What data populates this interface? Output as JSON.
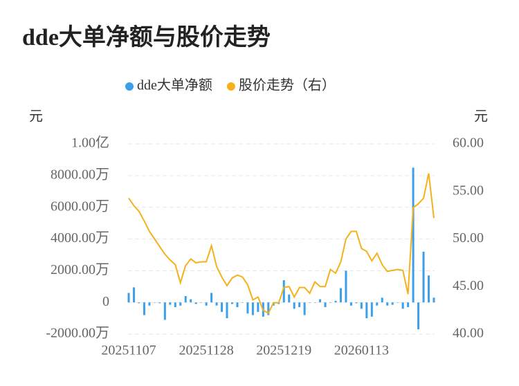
{
  "chart_data": {
    "type": "bar-line",
    "title": "dde大单净额与股价走势",
    "y_label": "元",
    "y2_label": "元",
    "categories": [
      "20251107",
      null,
      null,
      null,
      null,
      null,
      null,
      null,
      null,
      null,
      null,
      null,
      null,
      null,
      null,
      "20251128",
      null,
      null,
      null,
      null,
      null,
      null,
      null,
      null,
      null,
      null,
      null,
      null,
      null,
      null,
      "20251219",
      null,
      null,
      null,
      null,
      null,
      null,
      null,
      null,
      null,
      null,
      null,
      null,
      null,
      null,
      "20260113",
      null,
      null,
      null,
      null,
      null,
      null,
      null,
      null,
      null,
      null,
      null,
      null,
      null,
      null
    ],
    "series": [
      {
        "name": "dde大单净额",
        "color": "#3ba0e9",
        "kind": "bar",
        "axis": "y",
        "values": [
          600,
          950,
          -50,
          -800,
          -200,
          0,
          -50,
          -1100,
          -150,
          -300,
          -200,
          400,
          200,
          -100,
          0,
          -200,
          600,
          -200,
          -600,
          -1000,
          -100,
          -300,
          0,
          -700,
          -800,
          -600,
          -900,
          -800,
          -200,
          -100,
          1400,
          500,
          -400,
          -300,
          -800,
          0,
          0,
          200,
          -300,
          0,
          100,
          900,
          2000,
          -200,
          -50,
          -400,
          -1000,
          -900,
          -200,
          300,
          -200,
          -150,
          0,
          -400,
          -300,
          8500,
          -1700,
          3200,
          1700,
          300
        ]
      },
      {
        "name": "股价走势（右）",
        "color": "#f4b11a",
        "kind": "line",
        "axis": "y2",
        "values": [
          54.3,
          53.5,
          52.9,
          51.9,
          50.8,
          50.0,
          49.2,
          48.4,
          47.8,
          47.3,
          45.4,
          47.2,
          47.9,
          47.5,
          47.6,
          47.6,
          49.3,
          47.1,
          46.0,
          45.1,
          45.9,
          46.2,
          46.0,
          45.2,
          43.6,
          43.9,
          42.5,
          42.2,
          43.3,
          43.3,
          44.9,
          45.0,
          43.9,
          44.9,
          44.9,
          44.3,
          45.5,
          45.0,
          45.0,
          46.8,
          46.4,
          47.6,
          50.0,
          50.8,
          50.8,
          49.0,
          48.7,
          47.7,
          48.5,
          47.3,
          46.6,
          46.7,
          46.8,
          46.7,
          44.2,
          53.3,
          53.7,
          54.3,
          56.9,
          52.2
        ]
      }
    ],
    "ylim": [
      -2000,
      10000
    ],
    "yticks": [
      {
        "value": -2000,
        "label": "-2000.00万"
      },
      0,
      {
        "value": 2000,
        "label": "2000.00万"
      },
      {
        "value": 4000,
        "label": "4000.00万"
      },
      {
        "value": 6000,
        "label": "6000.00万"
      },
      {
        "value": 8000,
        "label": "8000.00万"
      },
      {
        "value": 10000,
        "label": "1.00亿"
      }
    ],
    "y2lim": [
      40,
      60
    ],
    "y2ticks": [
      {
        "value": 40,
        "label": "40.00"
      },
      {
        "value": 45,
        "label": "45.00"
      },
      {
        "value": 50,
        "label": "50.00"
      },
      {
        "value": 55,
        "label": "55.00"
      },
      {
        "value": 60,
        "label": "60.00"
      }
    ],
    "grid": true
  }
}
